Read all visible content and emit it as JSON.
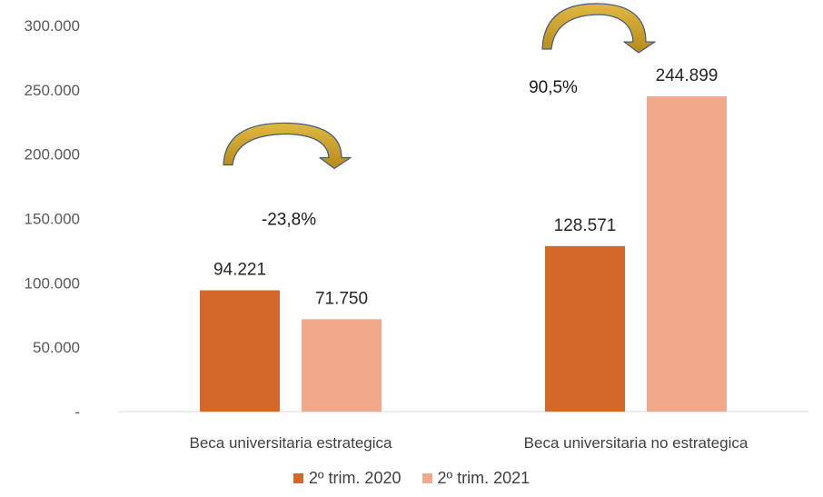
{
  "chart_data": {
    "type": "bar",
    "categories": [
      "Beca universitaria estrategica",
      "Beca universitaria no estrategica"
    ],
    "series": [
      {
        "name": "2º trim. 2020",
        "values": [
          94221,
          128571
        ],
        "labels": [
          "94.221",
          "128.571"
        ],
        "color": "#d2692a"
      },
      {
        "name": "2º trim. 2021",
        "values": [
          71750,
          244899
        ],
        "labels": [
          "71.750",
          "244.899"
        ],
        "color": "#f0a98a"
      }
    ],
    "ylim": [
      0,
      300000
    ],
    "yticks": [
      0,
      50000,
      100000,
      150000,
      200000,
      250000,
      300000
    ],
    "ytick_labels": [
      "-",
      "50.000",
      "100.000",
      "150.000",
      "200.000",
      "250.000",
      "300.000"
    ],
    "grid": false,
    "legend_position": "bottom",
    "annotations": [
      {
        "category": "Beca universitaria estrategica",
        "text": "-23,8%",
        "arrow": "curved-right"
      },
      {
        "category": "Beca universitaria no estrategica",
        "text": "90,5%",
        "arrow": "curved-right"
      }
    ],
    "arrow_colors": {
      "fill": "#c8a02a",
      "outline": "#3b5a86"
    }
  }
}
